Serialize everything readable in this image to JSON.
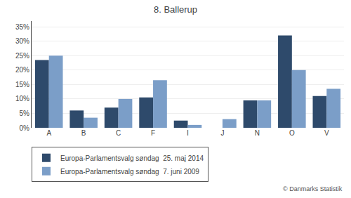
{
  "chart_data": {
    "type": "bar",
    "title": "8. Ballerup",
    "categories": [
      "A",
      "B",
      "C",
      "F",
      "I",
      "J",
      "N",
      "O",
      "V"
    ],
    "series": [
      {
        "name": "Europa-Parlamentsvalg søndag  25. maj 2014",
        "color": "#2E4A6B",
        "values": [
          23.5,
          6.0,
          7.0,
          10.5,
          2.5,
          0.0,
          9.5,
          32.0,
          11.0
        ]
      },
      {
        "name": "Europa-Parlamentsvalg søndag  7. juni 2009",
        "color": "#7B9EC8",
        "values": [
          25.0,
          3.5,
          10.0,
          16.5,
          1.0,
          3.0,
          9.5,
          20.0,
          13.5
        ]
      }
    ],
    "ylim": [
      0,
      37
    ],
    "yticks": [
      {
        "value": 0,
        "label": "0%"
      },
      {
        "value": 5,
        "label": "5%"
      },
      {
        "value": 10,
        "label": "10%"
      },
      {
        "value": 15,
        "label": "15%"
      },
      {
        "value": 20,
        "label": "20%"
      },
      {
        "value": 25,
        "label": "25%"
      },
      {
        "value": 30,
        "label": "30%"
      },
      {
        "value": 35,
        "label": "35%"
      }
    ],
    "grid": true,
    "legend": "bottom",
    "annotations": [
      "© Danmarks Statistik"
    ]
  }
}
